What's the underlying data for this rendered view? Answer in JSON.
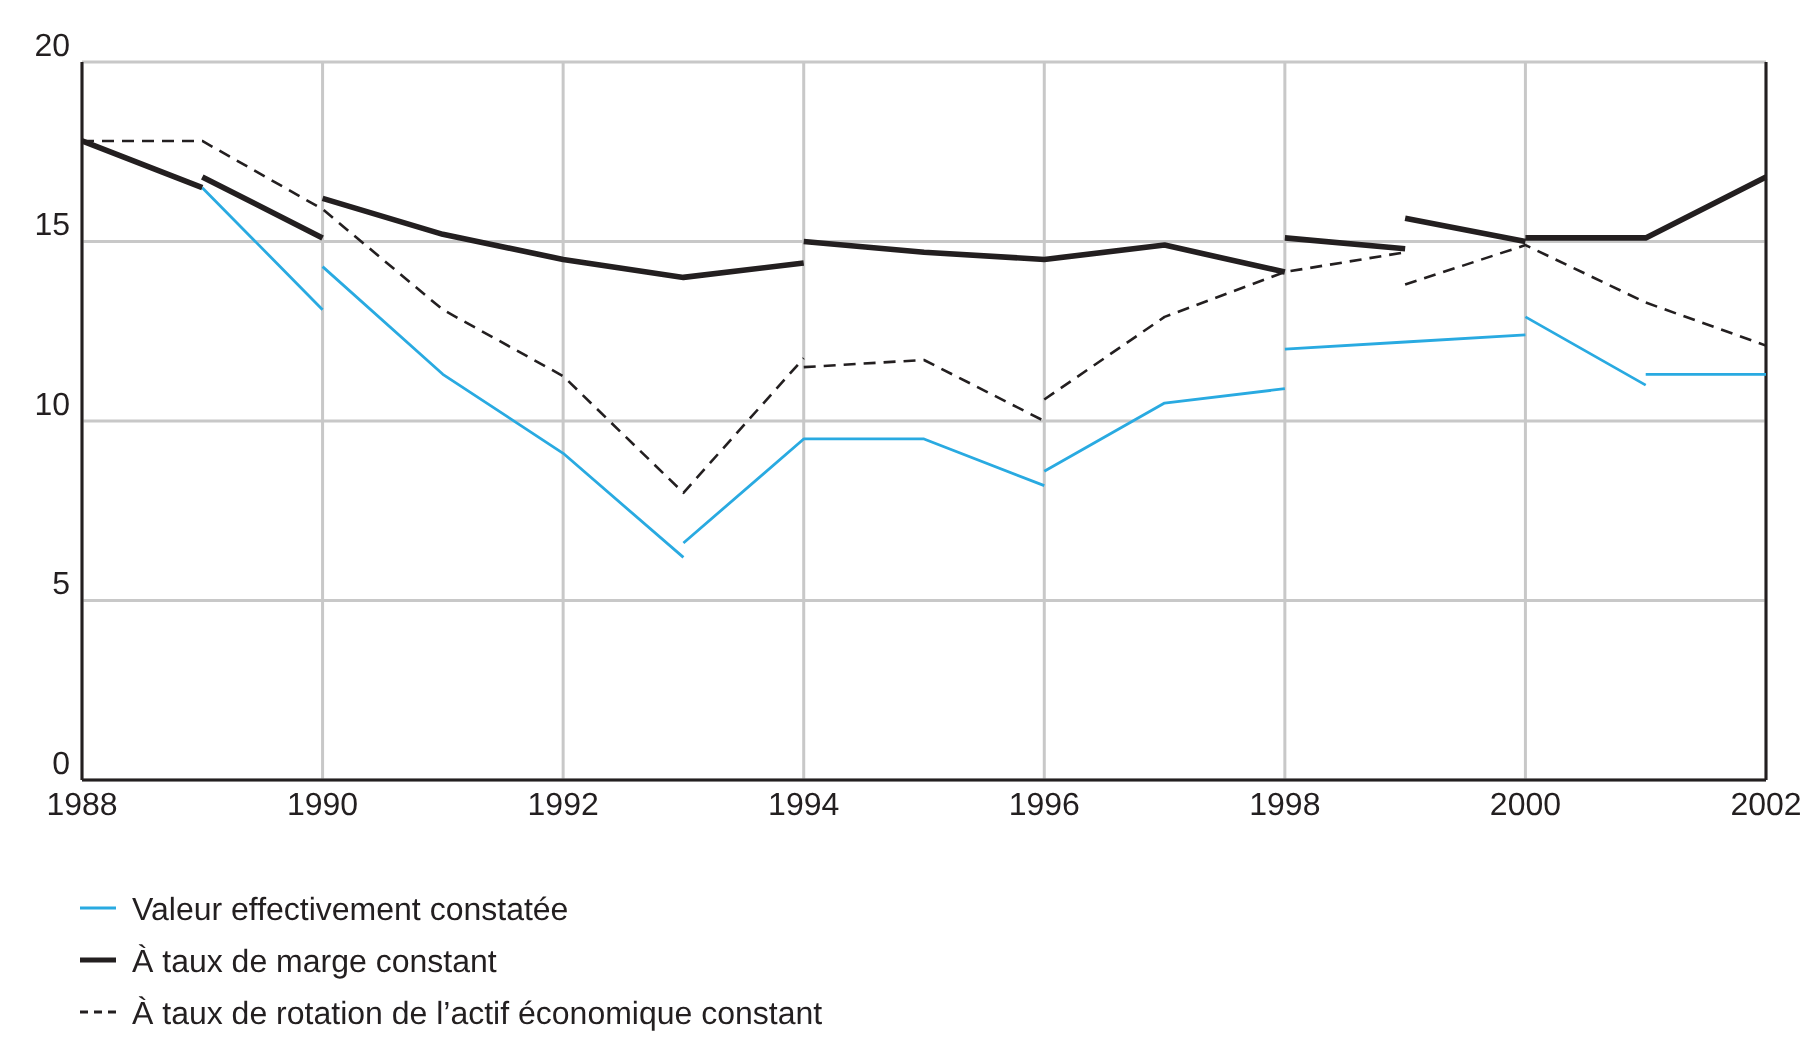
{
  "chart_data": {
    "type": "line",
    "xlim": [
      1988,
      2002
    ],
    "xticks": [
      1988,
      1990,
      1992,
      1994,
      1996,
      1998,
      2000,
      2002
    ],
    "ylim": [
      0,
      20
    ],
    "yticks": [
      0,
      5,
      10,
      15,
      20
    ],
    "grid": true,
    "legend": "bottom left",
    "series": [
      {
        "name": "Valeur effectivement constatée",
        "color": "#29aae1",
        "line_style": "solid",
        "x": [
          1989,
          1990,
          null,
          1990,
          1991,
          1992,
          1993,
          null,
          1993,
          1994,
          1995,
          1996,
          null,
          1996,
          1997,
          1998,
          null,
          1998,
          1999,
          2000,
          null,
          2000,
          2001,
          null,
          2001,
          2002
        ],
        "values": [
          16.5,
          13.1,
          null,
          14.3,
          11.3,
          9.1,
          6.2,
          null,
          6.6,
          9.5,
          9.5,
          8.2,
          null,
          8.6,
          10.5,
          10.9,
          null,
          12.0,
          12.2,
          12.4,
          null,
          12.9,
          11.0,
          null,
          11.3,
          11.3
        ]
      },
      {
        "name": "À taux de marge constant",
        "color": "#231f20",
        "line_style": "solid",
        "x": [
          1988,
          1989,
          null,
          1989,
          1990,
          null,
          1990,
          1991,
          1992,
          1993,
          1994,
          null,
          1994,
          1995,
          1996,
          1997,
          1998,
          null,
          1998,
          1999,
          null,
          1999,
          2000,
          null,
          2000,
          2001,
          2002
        ],
        "values": [
          17.8,
          16.5,
          null,
          16.8,
          15.1,
          null,
          16.2,
          15.2,
          14.5,
          14.0,
          14.4,
          null,
          15.0,
          14.7,
          14.5,
          14.9,
          14.15,
          null,
          15.1,
          14.8,
          null,
          15.65,
          15.0,
          null,
          15.1,
          15.1,
          16.8
        ]
      },
      {
        "name": "À taux de rotation de l’actif économique constant",
        "color": "#231f20",
        "line_style": "dashed",
        "x": [
          1988,
          1989,
          1990,
          1991,
          1992,
          1993,
          1994,
          null,
          1994,
          1995,
          1996,
          null,
          1996,
          1997,
          1998,
          1999,
          null,
          1999,
          2000,
          2001,
          2002
        ],
        "values": [
          17.8,
          17.8,
          15.9,
          13.1,
          11.25,
          8.0,
          11.75,
          null,
          11.5,
          11.7,
          10.0,
          null,
          10.6,
          12.9,
          14.15,
          14.7,
          null,
          13.8,
          14.9,
          13.3,
          12.1
        ]
      }
    ]
  }
}
